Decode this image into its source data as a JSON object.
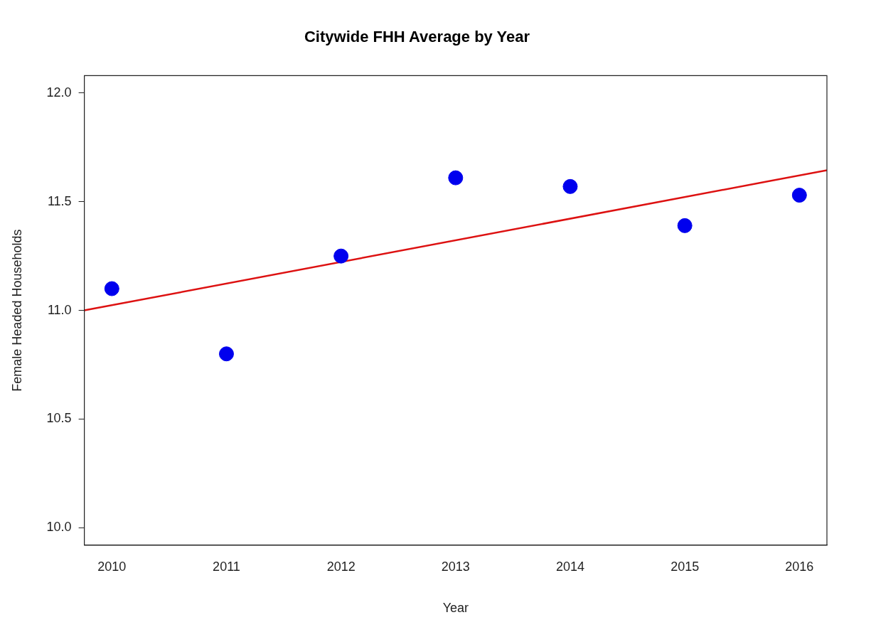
{
  "chart_data": {
    "type": "scatter",
    "title": "Citywide FHH Average by Year",
    "xlabel": "Year",
    "ylabel": "Female Headed Households",
    "xlim": [
      2009.76,
      2016.24
    ],
    "xticks": [
      2010,
      2011,
      2012,
      2013,
      2014,
      2015,
      2016
    ],
    "ylim": [
      9.92,
      12.08
    ],
    "yticks": [
      {
        "value": 10,
        "label": "10.0"
      },
      {
        "value": 10.5,
        "label": "10.5"
      },
      {
        "value": 11,
        "label": "11.0"
      },
      {
        "value": 11.5,
        "label": "11.5"
      },
      {
        "value": 12,
        "label": "12.0"
      }
    ],
    "grid": false,
    "legend": false,
    "marker": "circle",
    "series": [
      {
        "type": "scatter",
        "color": "#0000ee",
        "x": [
          2010,
          2011,
          2012,
          2013,
          2014,
          2015,
          2016
        ],
        "values": [
          11.1,
          10.8,
          11.25,
          11.61,
          11.57,
          11.39,
          11.53
        ]
      },
      {
        "type": "line",
        "color": "#dd1111",
        "marker": "none",
        "x": [
          2009.76,
          2016.24
        ],
        "values": [
          11.0,
          11.645
        ]
      }
    ]
  }
}
